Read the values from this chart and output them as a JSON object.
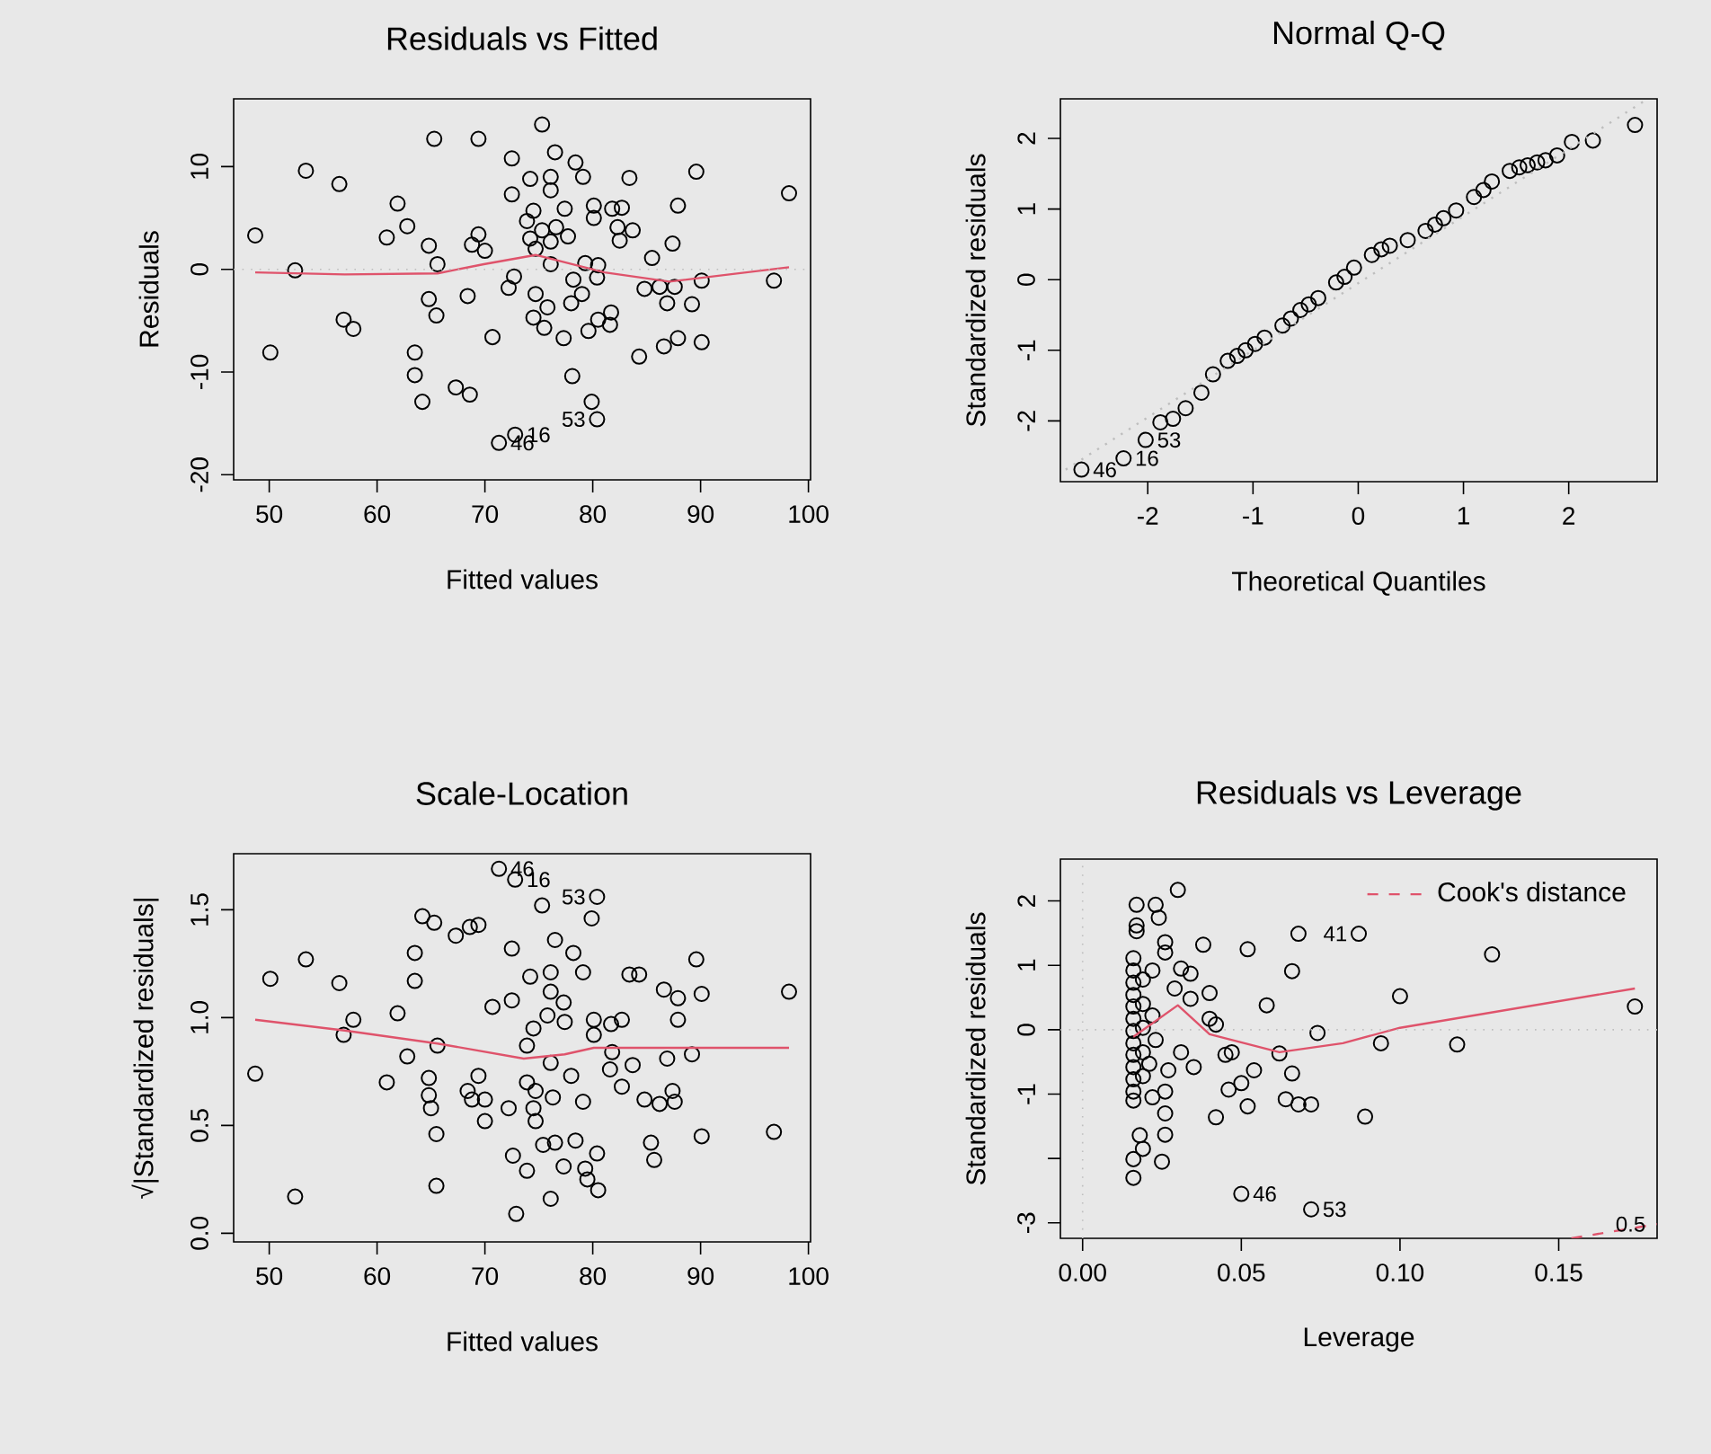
{
  "chart_data": [
    {
      "type": "scatter",
      "title": "Residuals vs Fitted",
      "xlabel": "Fitted values",
      "ylabel": "Residuals",
      "xlim": [
        46.7,
        100.2
      ],
      "ylim": [
        -20.5,
        16.6
      ],
      "xticks": [
        50,
        60,
        70,
        80,
        90,
        100
      ],
      "yticks": [
        -20,
        -10,
        0,
        10
      ],
      "marker": "circle",
      "series": [
        {
          "color": "#000000",
          "x": [
            48.7,
            50.1,
            52.4,
            53.4,
            56.5,
            56.9,
            57.8,
            60.9,
            61.9,
            62.8,
            63.5,
            63.5,
            64.2,
            64.8,
            65.3,
            65.6,
            64.8,
            65.5,
            67.3,
            68.6,
            68.4,
            69.4,
            69.4,
            68.8,
            70.0,
            70.7,
            71.3,
            72.8,
            72.5,
            72.5,
            72.2,
            72.7,
            74.2,
            74.5,
            73.9,
            74.2,
            75.3,
            76.1,
            76.1,
            76.5,
            75.3,
            76.1,
            76.6,
            74.7,
            77.4,
            77.7,
            76.1,
            74.7,
            74.5,
            75.8,
            75.5,
            77.3,
            78.1,
            78.4,
            79.1,
            78.2,
            79.3,
            78.0,
            79.0,
            80.1,
            80.1,
            80.5,
            80.4,
            79.6,
            80.5,
            79.9,
            80.4,
            81.8,
            82.7,
            82.3,
            82.5,
            83.7,
            81.7,
            81.6,
            83.4,
            84.3,
            85.5,
            84.8,
            86.2,
            87.6,
            86.9,
            86.6,
            87.9,
            87.4,
            87.9,
            89.6,
            89.2,
            90.1,
            90.1,
            96.8,
            98.2
          ],
          "values": [
            3.3,
            -8.1,
            -0.1,
            9.6,
            8.3,
            -4.9,
            -5.8,
            3.1,
            6.4,
            4.2,
            -8.1,
            -10.3,
            -12.9,
            2.3,
            12.7,
            0.5,
            -2.9,
            -4.5,
            -11.5,
            -12.2,
            -2.6,
            12.7,
            3.4,
            2.4,
            1.8,
            -6.6,
            -16.9,
            -16.1,
            10.8,
            7.3,
            -1.8,
            -0.7,
            8.8,
            5.7,
            4.7,
            3.0,
            14.1,
            9.0,
            7.7,
            11.4,
            3.8,
            2.7,
            4.1,
            2.0,
            5.9,
            3.2,
            0.5,
            -2.4,
            -4.7,
            -3.7,
            -5.7,
            -6.7,
            -10.4,
            10.4,
            9.0,
            -1.0,
            0.6,
            -3.3,
            -2.4,
            6.2,
            5.0,
            0.4,
            -0.8,
            -6.0,
            -4.9,
            -12.9,
            -14.6,
            5.9,
            6.0,
            4.1,
            2.8,
            3.8,
            -4.2,
            -5.4,
            8.9,
            -8.5,
            1.1,
            -1.9,
            -1.7,
            -1.7,
            -3.3,
            -7.5,
            -6.7,
            2.5,
            6.2,
            9.5,
            -3.4,
            -1.1,
            -7.1,
            -1.1,
            7.4
          ]
        },
        {
          "type": "line",
          "color": "#df536b",
          "marker": "none",
          "x": [
            48.7,
            57.0,
            65.6,
            69.9,
            74.7,
            81.1,
            87.1,
            98.2
          ],
          "values": [
            -0.3,
            -0.5,
            -0.4,
            0.5,
            1.4,
            -0.3,
            -1.2,
            0.2
          ]
        }
      ],
      "ref_lines": [
        {
          "axis": "y",
          "value": 0,
          "color": "#bebebe",
          "line_style": "dotted"
        }
      ],
      "annotations": [
        {
          "text": "46",
          "x": 71.3,
          "y": -16.9
        },
        {
          "text": "16",
          "x": 72.8,
          "y": -16.1
        },
        {
          "text": "53",
          "x": 80.4,
          "y": -14.6
        }
      ]
    },
    {
      "type": "scatter",
      "title": "Normal Q-Q",
      "xlabel": "Theoretical Quantiles",
      "ylabel": "Standardized residuals",
      "xlim": [
        -2.83,
        2.84
      ],
      "ylim": [
        -2.86,
        2.56
      ],
      "xticks": [
        -2,
        -1,
        0,
        1,
        2
      ],
      "yticks": [
        -2,
        -1,
        0,
        1,
        2
      ],
      "marker": "circle",
      "series": [
        {
          "color": "#000000",
          "x": [
            -2.63,
            -2.23,
            -2.02,
            -1.88,
            -1.76,
            -1.64,
            -1.49,
            -1.38,
            -1.24,
            -1.15,
            -1.07,
            -0.98,
            -0.89,
            -0.72,
            -0.64,
            -0.55,
            -0.47,
            -0.38,
            -0.21,
            -0.13,
            -0.04,
            0.13,
            0.22,
            0.3,
            0.47,
            0.64,
            0.73,
            0.81,
            0.93,
            1.1,
            1.19,
            1.27,
            1.44,
            1.53,
            1.61,
            1.7,
            1.78,
            1.89,
            2.03,
            2.23,
            2.63
          ],
          "values": [
            -2.69,
            -2.53,
            -2.27,
            -2.02,
            -1.97,
            -1.82,
            -1.6,
            -1.34,
            -1.15,
            -1.08,
            -1.0,
            -0.91,
            -0.82,
            -0.65,
            -0.55,
            -0.43,
            -0.35,
            -0.26,
            -0.04,
            0.04,
            0.17,
            0.35,
            0.43,
            0.48,
            0.56,
            0.69,
            0.78,
            0.87,
            0.98,
            1.17,
            1.27,
            1.39,
            1.54,
            1.59,
            1.62,
            1.66,
            1.69,
            1.76,
            1.95,
            1.97,
            2.19
          ]
        },
        {
          "type": "line",
          "marker": "none",
          "color": "#bebebe",
          "line_style": "dotted",
          "x": [
            -2.78,
            2.75
          ],
          "values": [
            -2.69,
            2.56
          ]
        }
      ],
      "annotations": [
        {
          "text": "46",
          "x": -2.63,
          "y": -2.69
        },
        {
          "text": "16",
          "x": -2.23,
          "y": -2.53
        },
        {
          "text": "53",
          "x": -2.02,
          "y": -2.27
        }
      ]
    },
    {
      "type": "scatter",
      "title": "Scale-Location",
      "xlabel": "Fitted values",
      "ylabel": "√|Standardized residuals|",
      "xlim": [
        46.7,
        100.2
      ],
      "ylim": [
        -0.04,
        1.76
      ],
      "xticks": [
        50,
        60,
        70,
        80,
        90,
        100
      ],
      "yticks": [
        {
          "value": 0,
          "label": "0.0"
        },
        {
          "value": 0.5,
          "label": "0.5"
        },
        {
          "value": 1,
          "label": "1.0"
        },
        {
          "value": 1.5,
          "label": "1.5"
        }
      ],
      "marker": "circle",
      "series": [
        {
          "color": "#000000",
          "x": [
            48.7,
            50.1,
            52.4,
            53.4,
            56.5,
            56.9,
            57.8,
            60.9,
            61.9,
            62.8,
            63.5,
            63.5,
            64.2,
            64.8,
            65.3,
            65.6,
            64.8,
            65.0,
            65.5,
            65.5,
            67.3,
            68.6,
            69.4,
            68.4,
            68.8,
            70.0,
            70.0,
            69.4,
            70.7,
            71.3,
            72.8,
            72.5,
            72.5,
            72.2,
            72.6,
            72.9,
            73.9,
            74.2,
            73.9,
            74.5,
            73.9,
            74.7,
            74.5,
            74.7,
            75.3,
            76.1,
            76.1,
            75.8,
            76.1,
            76.3,
            75.4,
            76.5,
            76.1,
            76.5,
            77.3,
            77.4,
            77.3,
            78.0,
            78.2,
            78.4,
            79.1,
            79.1,
            79.3,
            79.5,
            80.4,
            79.9,
            80.4,
            80.5,
            80.1,
            80.1,
            81.7,
            81.8,
            81.6,
            82.7,
            82.7,
            83.7,
            83.4,
            84.3,
            84.8,
            85.4,
            85.7,
            86.2,
            86.6,
            86.9,
            87.4,
            87.6,
            87.9,
            87.9,
            89.6,
            89.2,
            90.1,
            90.1,
            96.8,
            98.2
          ],
          "values": [
            0.74,
            1.18,
            0.17,
            1.27,
            1.16,
            0.92,
            0.99,
            0.7,
            1.02,
            0.82,
            1.17,
            1.3,
            1.47,
            0.72,
            1.44,
            0.87,
            0.64,
            0.58,
            0.46,
            0.22,
            1.38,
            1.42,
            1.43,
            0.66,
            0.62,
            0.62,
            0.52,
            0.73,
            1.05,
            1.69,
            1.64,
            1.32,
            1.08,
            0.58,
            0.36,
            0.09,
            0.29,
            1.19,
            0.87,
            0.95,
            0.7,
            0.66,
            0.58,
            0.52,
            1.52,
            1.21,
            1.12,
            1.01,
            0.79,
            0.63,
            0.41,
            0.42,
            0.16,
            1.36,
            1.07,
            0.98,
            0.31,
            0.73,
            1.3,
            0.43,
            1.21,
            0.61,
            0.3,
            0.25,
            1.56,
            1.46,
            0.37,
            0.2,
            0.99,
            0.92,
            0.97,
            0.84,
            0.76,
            0.99,
            0.68,
            0.78,
            1.2,
            1.2,
            0.62,
            0.42,
            0.34,
            0.6,
            1.13,
            0.81,
            0.66,
            0.61,
            0.99,
            1.09,
            1.27,
            0.83,
            1.11,
            0.45,
            0.47,
            1.12
          ]
        },
        {
          "type": "line",
          "color": "#df536b",
          "marker": "none",
          "x": [
            48.7,
            57.0,
            65.6,
            73.6,
            77.4,
            80.1,
            98.2
          ],
          "values": [
            0.99,
            0.94,
            0.88,
            0.81,
            0.83,
            0.86,
            0.86
          ]
        }
      ],
      "annotations": [
        {
          "text": "46",
          "x": 71.3,
          "y": 1.69
        },
        {
          "text": "16",
          "x": 72.8,
          "y": 1.64
        },
        {
          "text": "53",
          "x": 80.4,
          "y": 1.56
        }
      ]
    },
    {
      "type": "scatter",
      "title": "Residuals vs Leverage",
      "xlabel": "Leverage",
      "ylabel": "Standardized residuals",
      "xlim": [
        -0.007,
        0.181
      ],
      "ylim": [
        -3.24,
        2.65
      ],
      "xticks": [
        {
          "value": 0,
          "label": "0.00"
        },
        {
          "value": 0.05,
          "label": "0.05"
        },
        {
          "value": 0.1,
          "label": "0.10"
        },
        {
          "value": 0.15,
          "label": "0.15"
        }
      ],
      "yticks": [
        -3,
        {
          "value": -2,
          "label": null
        },
        -1,
        0,
        1,
        2
      ],
      "marker": "circle",
      "legend": "top right",
      "series": [
        {
          "color": "#000000",
          "x": [
            0.03,
            0.017,
            0.023,
            0.024,
            0.017,
            0.017,
            0.026,
            0.026,
            0.038,
            0.052,
            0.068,
            0.087,
            0.129,
            0.066,
            0.016,
            0.016,
            0.016,
            0.016,
            0.016,
            0.016,
            0.016,
            0.016,
            0.016,
            0.016,
            0.016,
            0.016,
            0.016,
            0.019,
            0.019,
            0.019,
            0.019,
            0.019,
            0.022,
            0.022,
            0.023,
            0.021,
            0.022,
            0.027,
            0.026,
            0.031,
            0.034,
            0.029,
            0.034,
            0.04,
            0.031,
            0.035,
            0.04,
            0.042,
            0.045,
            0.047,
            0.058,
            0.074,
            0.062,
            0.054,
            0.05,
            0.046,
            0.052,
            0.066,
            0.064,
            0.068,
            0.072,
            0.042,
            0.026,
            0.026,
            0.018,
            0.019,
            0.016,
            0.025,
            0.016,
            0.089,
            0.094,
            0.1,
            0.118,
            0.174,
            0.05,
            0.072
          ],
          "values": [
            2.17,
            1.94,
            1.94,
            1.74,
            1.62,
            1.53,
            1.36,
            1.2,
            1.32,
            1.25,
            1.49,
            1.49,
            1.17,
            0.91,
            1.11,
            0.92,
            0.73,
            0.54,
            0.36,
            0.17,
            -0.02,
            -0.21,
            -0.39,
            -0.58,
            -0.77,
            -0.96,
            -1.1,
            0.78,
            0.4,
            0.03,
            -0.35,
            -0.72,
            0.92,
            0.22,
            -0.16,
            -0.53,
            -1.05,
            -0.63,
            -0.96,
            0.95,
            0.87,
            0.64,
            0.48,
            0.57,
            -0.35,
            -0.58,
            0.17,
            0.08,
            -0.39,
            -0.35,
            0.38,
            -0.05,
            -0.37,
            -0.63,
            -0.83,
            -0.93,
            -1.19,
            -0.68,
            -1.08,
            -1.16,
            -1.16,
            -1.36,
            -1.3,
            -1.63,
            -1.64,
            -1.85,
            -2.01,
            -2.05,
            -2.3,
            -1.35,
            -0.21,
            0.52,
            -0.23,
            0.36,
            -2.55,
            -2.79
          ]
        },
        {
          "type": "line",
          "color": "#df536b",
          "marker": "none",
          "x": [
            0.016,
            0.03,
            0.04,
            0.062,
            0.082,
            0.1,
            0.174
          ],
          "values": [
            -0.11,
            0.38,
            -0.07,
            -0.35,
            -0.21,
            0.03,
            0.64
          ]
        },
        {
          "type": "line",
          "name": "Cook's distance",
          "marker": "none",
          "color": "#df536b",
          "line_style": "dashed",
          "x": [
            0.154,
            0.181
          ],
          "values": [
            -3.24,
            -3.02
          ]
        }
      ],
      "ref_lines": [
        {
          "axis": "y",
          "value": 0,
          "color": "#bebebe",
          "line_style": "dotted"
        },
        {
          "axis": "x",
          "value": 0,
          "color": "#bebebe",
          "line_style": "dotted"
        }
      ],
      "annotations": [
        {
          "text": "41",
          "x": 0.087,
          "y": 1.49
        },
        {
          "text": "46",
          "x": 0.05,
          "y": -2.55
        },
        {
          "text": "53",
          "x": 0.072,
          "y": -2.79
        },
        {
          "text": "0.5",
          "x": 0.181,
          "y": -3.02
        }
      ]
    }
  ]
}
